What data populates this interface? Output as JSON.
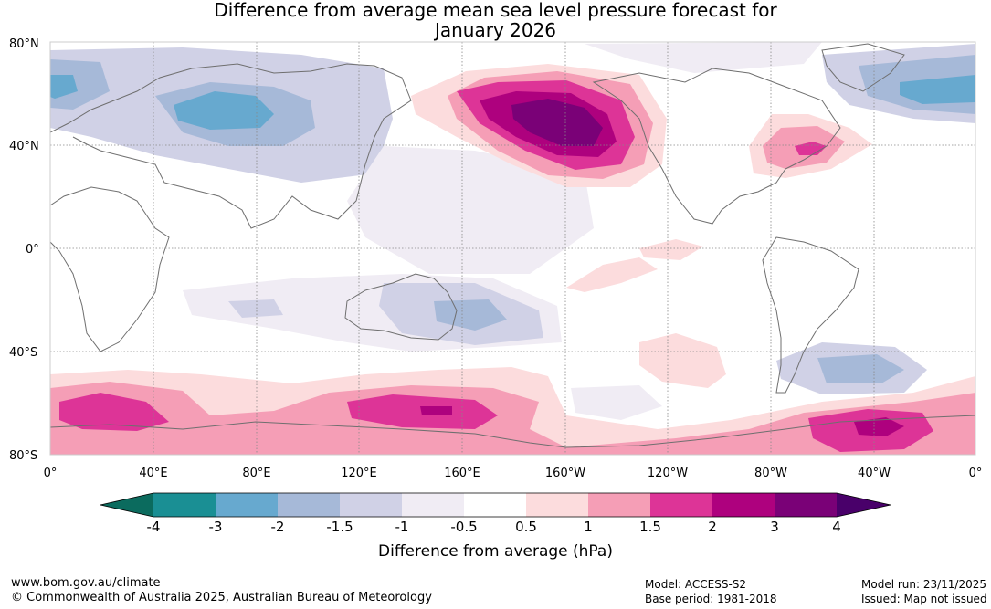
{
  "title": {
    "line1": "Difference from average mean sea level pressure forecast for",
    "line2": "January 2026"
  },
  "map": {
    "lat_labels": [
      "80°N",
      "40°N",
      "0°",
      "40°S",
      "80°S"
    ],
    "lon_labels": [
      "0°",
      "40°E",
      "80°E",
      "120°E",
      "160°E",
      "160°W",
      "120°W",
      "80°W",
      "40°W",
      "0°"
    ]
  },
  "colorbar": {
    "title": "Difference from average (hPa)",
    "ticks": [
      "-4",
      "-3",
      "-2",
      "-1.5",
      "-1",
      "-0.5",
      "0.5",
      "1",
      "1.5",
      "2",
      "3",
      "4"
    ],
    "colors": [
      "#1a8f94",
      "#67a9cf",
      "#a6b9d8",
      "#d0d1e6",
      "#f0ecf4",
      "#ffffff",
      "#fcdcdd",
      "#f59eb6",
      "#dd3497",
      "#ae017e",
      "#7a0177"
    ],
    "under_color": "#0b6b5e",
    "over_color": "#49006a"
  },
  "footer": {
    "website": "www.bom.gov.au/climate",
    "copyright": "© Commonwealth of Australia 2025, Australian Bureau of Meteorology",
    "model": "Model: ACCESS-S2",
    "base_period": "Base period: 1981-2018",
    "model_run": "Model run: 23/11/2025",
    "issued": "Issued: Map not issued"
  }
}
